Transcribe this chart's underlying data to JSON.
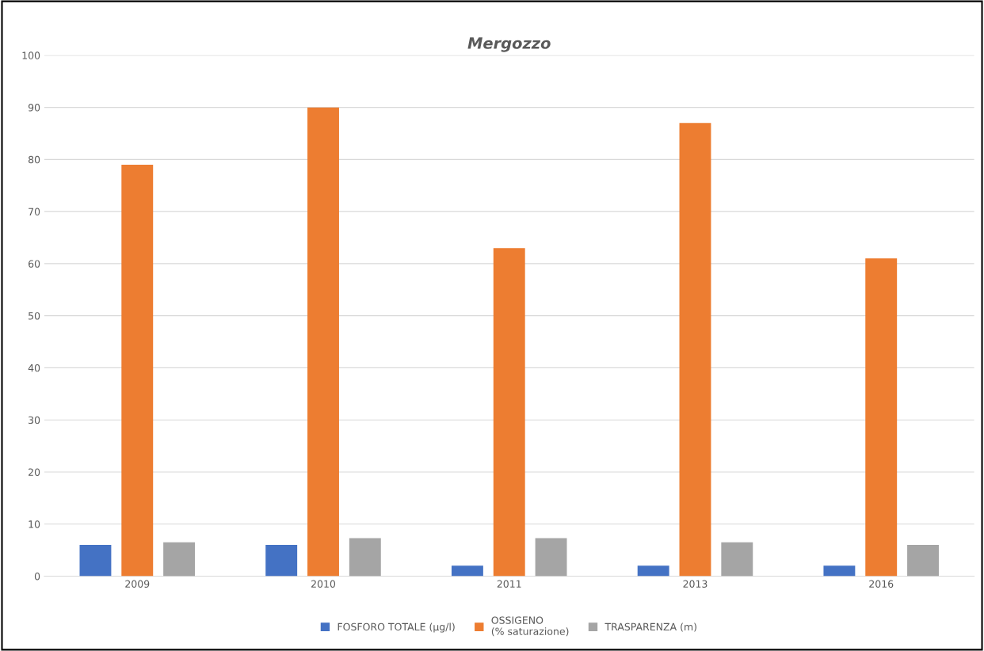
{
  "chart_data": {
    "type": "bar",
    "title": "Mergozzo",
    "categories": [
      "2009",
      "2010",
      "2011",
      "2013",
      "2016"
    ],
    "series": [
      {
        "name": "FOSFORO TOTALE (µg/l)",
        "color": "#4472c4",
        "values": [
          6,
          6,
          2,
          2,
          2
        ]
      },
      {
        "name": "OSSIGENO\n(% saturazione)",
        "color": "#ed7d31",
        "values": [
          79,
          90,
          63,
          87,
          61
        ]
      },
      {
        "name": "TRASPARENZA (m)",
        "color": "#a5a5a5",
        "values": [
          6.5,
          7.3,
          7.3,
          6.5,
          6
        ]
      }
    ],
    "ylim": [
      0,
      100
    ],
    "yticks": [
      0,
      10,
      20,
      30,
      40,
      50,
      60,
      70,
      80,
      90,
      100
    ],
    "grid": "y",
    "legend": "bottom"
  }
}
